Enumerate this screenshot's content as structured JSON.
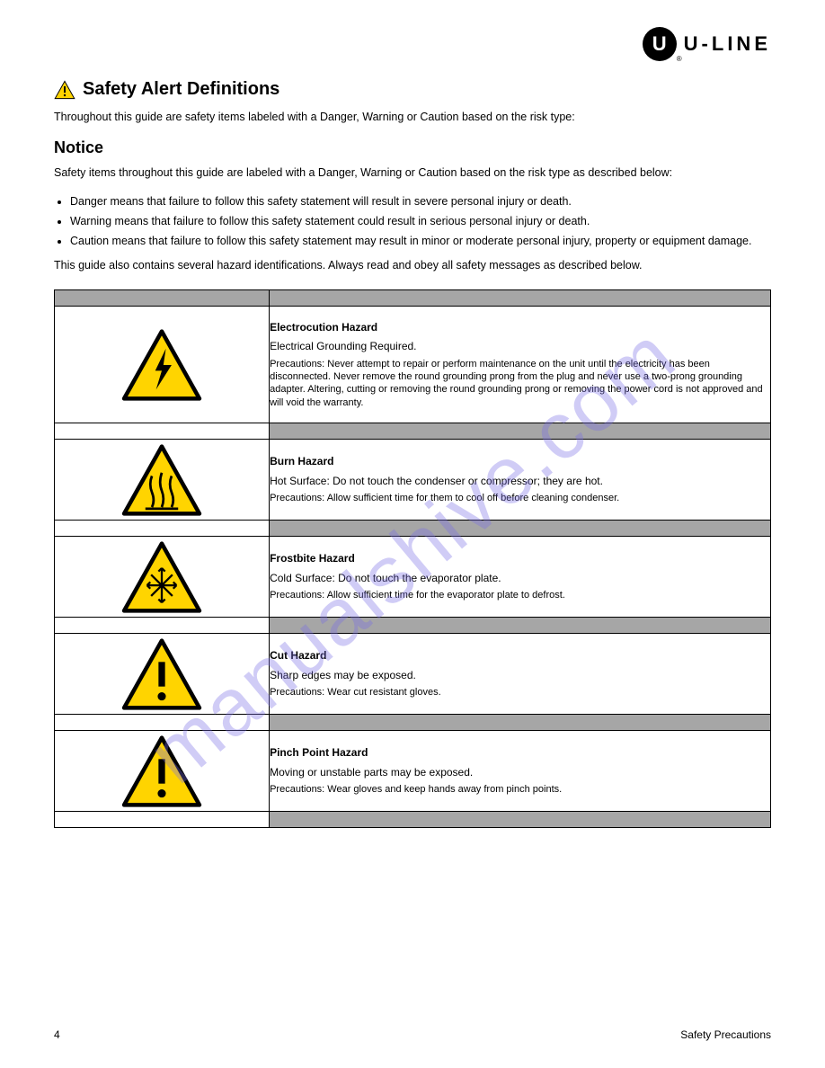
{
  "logo": {
    "text": "U-LINE"
  },
  "safety_alert": {
    "title": "Safety Alert Definitions",
    "text": "Throughout this guide are safety items labeled with a Danger, Warning or Caution based on the risk type:"
  },
  "notice": {
    "title": "Notice",
    "intro": "Safety items throughout this guide are labeled with a Danger, Warning or Caution based on the risk type as described below:",
    "items": [
      "Danger means that failure to follow this safety statement will result in severe personal injury or death.",
      "Warning means that failure to follow this safety statement could result in serious personal injury or death.",
      "Caution means that failure to follow this safety statement may result in minor or moderate personal injury, property or equipment damage."
    ],
    "final": "This guide also contains several hazard identifications. Always read and obey all safety messages as described below."
  },
  "hazards": [
    {
      "icon": "bolt",
      "name": "Electrocution Hazard",
      "situation": "Electrical Grounding Required.",
      "precautions": "Precautions: Never attempt to repair or perform maintenance on the unit until the electricity has been disconnected. Never remove the round grounding prong from the plug and never use a two-prong grounding adapter. Altering, cutting or removing the round grounding prong or removing the power cord is not approved and will void the warranty.",
      "tall": true
    },
    {
      "icon": "heat",
      "name": "Burn Hazard",
      "situation": "Hot Surface: Do not touch the condenser or compressor; they are hot.",
      "precautions": "Precautions: Allow sufficient time for them to cool off before cleaning condenser.",
      "tall": false
    },
    {
      "icon": "snow",
      "name": "Frostbite Hazard",
      "situation": "Cold Surface: Do not touch the evaporator plate.",
      "precautions": "Precautions: Allow sufficient time for the evaporator plate to defrost.",
      "tall": false
    },
    {
      "icon": "excl",
      "name": "Cut Hazard",
      "situation": "Sharp edges may be exposed.",
      "precautions": "Precautions: Wear cut resistant gloves.",
      "tall": false
    },
    {
      "icon": "excl",
      "name": "Pinch Point Hazard",
      "situation": "Moving or unstable parts may be exposed.",
      "precautions": "Precautions: Wear gloves and keep hands away from pinch points.",
      "tall": false
    }
  ],
  "footer": {
    "page": "4",
    "title": "Safety Precautions"
  },
  "watermark": "manualshive.com",
  "colors": {
    "tri_fill": "#ffd400",
    "tri_stroke": "#000000",
    "gray_header": "#a6a6a6"
  }
}
